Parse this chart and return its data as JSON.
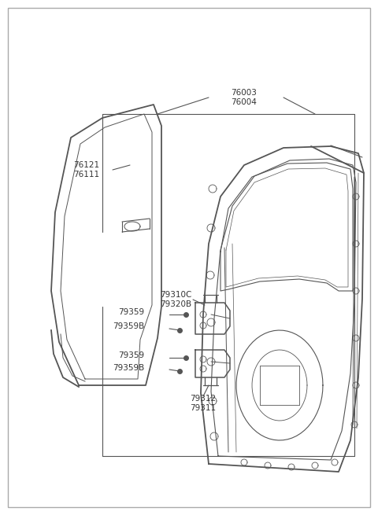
{
  "background_color": "#ffffff",
  "line_color": "#555555",
  "text_color": "#333333",
  "fig_width": 4.8,
  "fig_height": 6.55,
  "dpi": 100,
  "label_76003": "76003",
  "label_76004": "76004",
  "label_76121": "76121",
  "label_76111": "76111",
  "label_79310C": "79310C",
  "label_79320B": "79320B",
  "label_79359a": "79359",
  "label_79359Ba": "79359B",
  "label_79359b": "79359",
  "label_79359Bb": "79359B",
  "label_79312": "79312",
  "label_79311": "79311"
}
